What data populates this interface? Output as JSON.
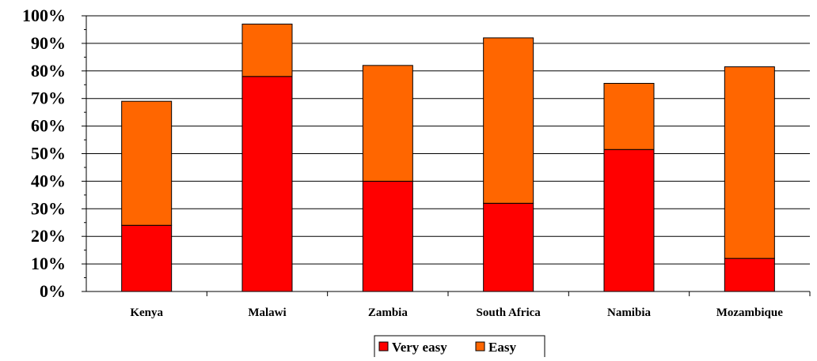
{
  "chart_data": {
    "type": "bar",
    "stacked": true,
    "categories": [
      "Kenya",
      "Malawi",
      "Zambia",
      "South Africa",
      "Namibia",
      "Mozambique"
    ],
    "series": [
      {
        "name": "Very easy",
        "color": "#ff0000",
        "values": [
          24,
          78,
          40,
          32,
          51.5,
          12
        ]
      },
      {
        "name": "Easy",
        "color": "#ff6600",
        "values": [
          45,
          19,
          42,
          60,
          24,
          69.5
        ]
      }
    ],
    "y_ticks": [
      "0%",
      "10%",
      "20%",
      "30%",
      "40%",
      "50%",
      "60%",
      "70%",
      "80%",
      "90%",
      "100%"
    ],
    "ylim": [
      0,
      100
    ],
    "grid": true,
    "legend_position": "bottom"
  }
}
